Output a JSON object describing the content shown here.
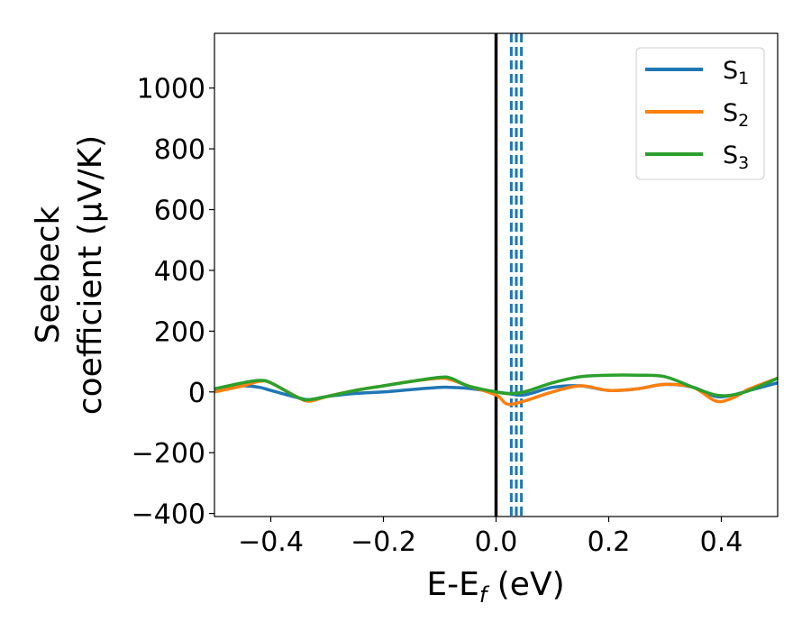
{
  "chart_data": {
    "type": "line",
    "title": "",
    "xlabel": {
      "base": "E-E",
      "sub": "f",
      "rest": " (eV)"
    },
    "ylabel": {
      "line1": "Seebeck",
      "line2": "coefficient  (μV/K)"
    },
    "xlim": [
      -0.5,
      0.5
    ],
    "ylim": [
      -410,
      1180
    ],
    "xticks": [
      -0.4,
      -0.2,
      0.0,
      0.2,
      0.4
    ],
    "xtick_labels": [
      "−0.4",
      "−0.2",
      "0.0",
      "0.2",
      "0.4"
    ],
    "yticks": [
      -400,
      -200,
      0,
      200,
      400,
      600,
      800,
      1000
    ],
    "ytick_labels": [
      "−400",
      "−200",
      "0",
      "200",
      "400",
      "600",
      "800",
      "1000"
    ],
    "grid": false,
    "legend_position": "top-right",
    "colors": {
      "S1": "#1f77b4",
      "S2": "#ff7f0e",
      "S3": "#2ca02c",
      "fermi": "#000000",
      "dashed": "#1f77b4"
    },
    "vertical_lines": [
      {
        "x": 0.0,
        "style": "solid",
        "color": "#000000"
      },
      {
        "x": 0.027,
        "style": "dashed",
        "color": "#1f77b4"
      },
      {
        "x": 0.036,
        "style": "dashed",
        "color": "#1f77b4"
      },
      {
        "x": 0.045,
        "style": "dashed",
        "color": "#1f77b4"
      }
    ],
    "x": [
      -0.5,
      -0.45,
      -0.42,
      -0.4,
      -0.35,
      -0.33,
      -0.3,
      -0.25,
      -0.2,
      -0.15,
      -0.1,
      -0.08,
      -0.05,
      0.0,
      0.02,
      0.05,
      0.1,
      0.15,
      0.2,
      0.25,
      0.3,
      0.35,
      0.39,
      0.42,
      0.45,
      0.5
    ],
    "series": [
      {
        "name": "S",
        "sub": "1",
        "color": "#1f77b4",
        "values": [
          10,
          20,
          15,
          5,
          -20,
          -25,
          -15,
          -5,
          0,
          8,
          15,
          15,
          12,
          0,
          -5,
          -10,
          15,
          20,
          5,
          10,
          25,
          15,
          -15,
          -10,
          5,
          30
        ]
      },
      {
        "name": "S",
        "sub": "2",
        "color": "#ff7f0e",
        "values": [
          0,
          20,
          35,
          30,
          -20,
          -30,
          -15,
          5,
          20,
          35,
          45,
          40,
          20,
          -10,
          -40,
          -30,
          0,
          20,
          5,
          10,
          25,
          15,
          -30,
          -20,
          10,
          45
        ]
      },
      {
        "name": "S",
        "sub": "3",
        "color": "#2ca02c",
        "values": [
          10,
          30,
          38,
          30,
          -20,
          -25,
          -15,
          5,
          20,
          35,
          48,
          45,
          20,
          0,
          -5,
          0,
          30,
          50,
          55,
          55,
          50,
          15,
          -10,
          -10,
          5,
          45
        ]
      }
    ]
  }
}
